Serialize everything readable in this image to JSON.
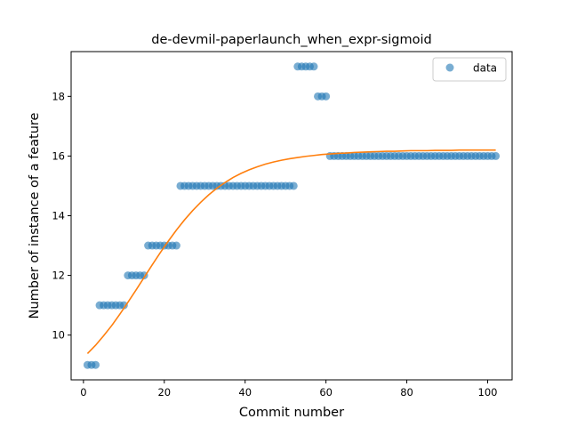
{
  "chart_data": {
    "type": "scatter",
    "title": "de-devmil-paperlaunch_when_expr-sigmoid",
    "xlabel": "Commit number",
    "ylabel": "Number of instance of a feature",
    "xlim": [
      -3.05,
      106.05
    ],
    "ylim": [
      8.5,
      19.5
    ],
    "xticks": [
      0,
      20,
      40,
      60,
      80,
      100
    ],
    "yticks": [
      10,
      12,
      14,
      16,
      18
    ],
    "grid": false,
    "legend": {
      "placement": "top-right",
      "entries": [
        "data"
      ]
    },
    "colors": {
      "data": "#1f77b4",
      "fit": "#ff7f0e"
    },
    "series": [
      {
        "name": "data",
        "kind": "scatter",
        "x": [
          1,
          2,
          3,
          4,
          5,
          6,
          7,
          8,
          9,
          10,
          11,
          12,
          13,
          14,
          15,
          16,
          17,
          18,
          19,
          20,
          21,
          22,
          23,
          24,
          25,
          26,
          27,
          28,
          29,
          30,
          31,
          32,
          33,
          34,
          35,
          36,
          37,
          38,
          39,
          40,
          41,
          42,
          43,
          44,
          45,
          46,
          47,
          48,
          49,
          50,
          51,
          52,
          53,
          54,
          55,
          56,
          57,
          58,
          59,
          60,
          61,
          62,
          63,
          64,
          65,
          66,
          67,
          68,
          69,
          70,
          71,
          72,
          73,
          74,
          75,
          76,
          77,
          78,
          79,
          80,
          81,
          82,
          83,
          84,
          85,
          86,
          87,
          88,
          89,
          90,
          91,
          92,
          93,
          94,
          95,
          96,
          97,
          98,
          99,
          100,
          101,
          102
        ],
        "y": [
          9,
          9,
          9,
          11,
          11,
          11,
          11,
          11,
          11,
          11,
          12,
          12,
          12,
          12,
          12,
          13,
          13,
          13,
          13,
          13,
          13,
          13,
          13,
          15,
          15,
          15,
          15,
          15,
          15,
          15,
          15,
          15,
          15,
          15,
          15,
          15,
          15,
          15,
          15,
          15,
          15,
          15,
          15,
          15,
          15,
          15,
          15,
          15,
          15,
          15,
          15,
          15,
          19,
          19,
          19,
          19,
          19,
          18,
          18,
          18,
          16,
          16,
          16,
          16,
          16,
          16,
          16,
          16,
          16,
          16,
          16,
          16,
          16,
          16,
          16,
          16,
          16,
          16,
          16,
          16,
          16,
          16,
          16,
          16,
          16,
          16,
          16,
          16,
          16,
          16,
          16,
          16,
          16,
          16,
          16,
          16,
          16,
          16,
          16,
          16,
          16,
          16
        ]
      },
      {
        "kind": "line",
        "x": [
          1,
          3,
          5,
          7,
          9,
          11,
          13,
          15,
          17,
          19,
          21,
          23,
          25,
          27,
          29,
          31,
          33,
          35,
          37,
          39,
          41,
          43,
          45,
          47,
          49,
          51,
          53,
          55,
          57,
          59,
          61,
          63,
          65,
          67,
          69,
          71,
          73,
          75,
          77,
          79,
          81,
          83,
          85,
          87,
          89,
          91,
          93,
          95,
          97,
          99,
          101,
          102
        ],
        "y": [
          9.38,
          9.66,
          9.98,
          10.32,
          10.7,
          11.1,
          11.51,
          11.93,
          12.35,
          12.76,
          13.15,
          13.52,
          13.86,
          14.17,
          14.45,
          14.7,
          14.92,
          15.11,
          15.28,
          15.42,
          15.54,
          15.64,
          15.73,
          15.8,
          15.86,
          15.91,
          15.95,
          15.99,
          16.02,
          16.05,
          16.07,
          16.09,
          16.1,
          16.12,
          16.13,
          16.14,
          16.15,
          16.16,
          16.16,
          16.17,
          16.18,
          16.18,
          16.18,
          16.19,
          16.19,
          16.19,
          16.2,
          16.2,
          16.2,
          16.2,
          16.2,
          16.2
        ]
      }
    ]
  }
}
